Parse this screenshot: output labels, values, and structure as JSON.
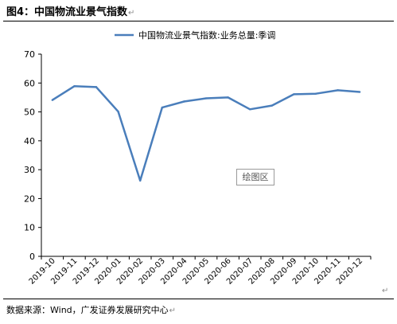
{
  "figure": {
    "title": "图4：中国物流业景气指数",
    "source": "数据来源：Wind，广发证券发展研究中心",
    "return_mark": "↵"
  },
  "plot_area_badge": "绘图区",
  "colors": {
    "series": "#4A7EBB",
    "axis": "#000000",
    "text": "#000000"
  },
  "chart_data": {
    "type": "line",
    "x": [
      "2019-10",
      "2019-11",
      "2019-12",
      "2020-01",
      "2020-02",
      "2020-03",
      "2020-04",
      "2020-05",
      "2020-06",
      "2020-07",
      "2020-08",
      "2020-09",
      "2020-10",
      "2020-11",
      "2020-12"
    ],
    "series": [
      {
        "name": "中国物流业景气指数:业务总量:季调",
        "values": [
          54.1,
          58.9,
          58.6,
          50.1,
          26.2,
          51.5,
          53.6,
          54.7,
          55.0,
          50.9,
          52.2,
          56.1,
          56.3,
          57.5,
          56.9
        ]
      }
    ],
    "title": "",
    "xlabel": "",
    "ylabel": "",
    "ylim": [
      0,
      70
    ],
    "yticks": [
      "0",
      "10",
      "20",
      "30",
      "40",
      "50",
      "60",
      "70"
    ],
    "grid": false,
    "legend_position": "top-center"
  }
}
